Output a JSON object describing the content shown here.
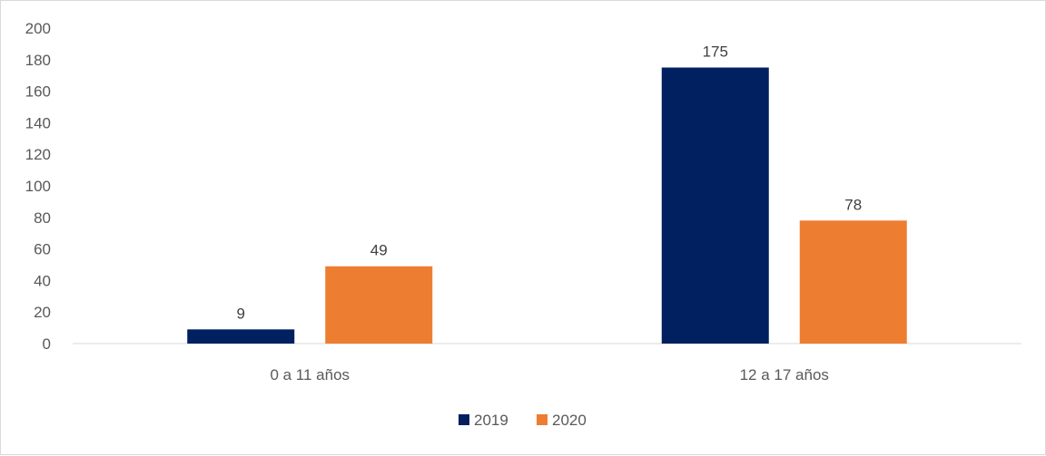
{
  "chart_data": {
    "type": "bar",
    "categories": [
      "0 a 11 años",
      "12 a 17 años"
    ],
    "series": [
      {
        "name": "2019",
        "values": [
          9,
          175
        ],
        "color": "#002060"
      },
      {
        "name": "2020",
        "values": [
          49,
          78
        ],
        "color": "#ED7D31"
      }
    ],
    "yticks": [
      "0",
      "20",
      "40",
      "60",
      "80",
      "100",
      "120",
      "140",
      "160",
      "180",
      "200"
    ],
    "ylim": [
      0,
      200
    ],
    "legend_position": "bottom",
    "data_labels": true,
    "grid": false
  }
}
